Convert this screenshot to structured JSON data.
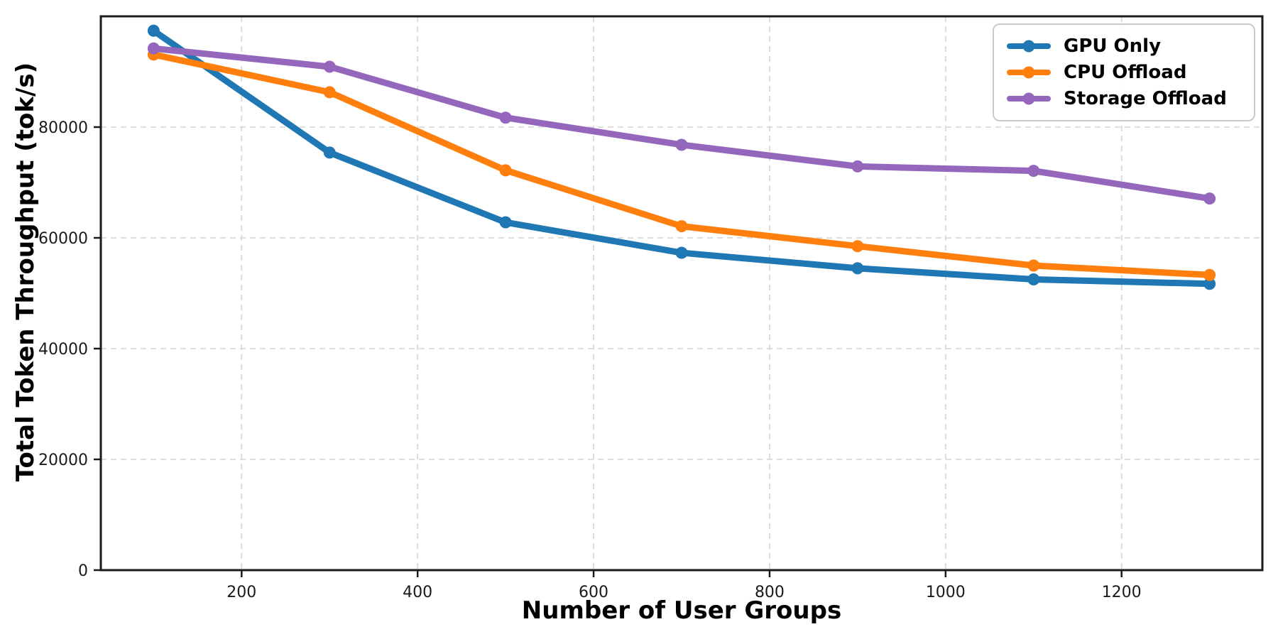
{
  "chart_data": {
    "type": "line",
    "x": [
      100,
      300,
      500,
      700,
      900,
      1100,
      1300
    ],
    "series": [
      {
        "name": "GPU Only",
        "color": "#1f77b4",
        "values": [
          97400,
          75400,
          62800,
          57300,
          54500,
          52500,
          51700
        ]
      },
      {
        "name": "CPU Offload",
        "color": "#ff7f0e",
        "values": [
          93100,
          86300,
          72200,
          62100,
          58500,
          55000,
          53300
        ]
      },
      {
        "name": "Storage Offload",
        "color": "#9467bd",
        "values": [
          94200,
          90900,
          81700,
          76800,
          72900,
          72100,
          67100
        ]
      }
    ],
    "title": "",
    "xlabel": "Number of User Groups",
    "ylabel": "Total Token Throughput (tok/s)",
    "x_ticks": [
      200,
      400,
      600,
      800,
      1000,
      1200
    ],
    "y_ticks": [
      0,
      20000,
      40000,
      60000,
      80000
    ],
    "xlim": [
      40,
      1360
    ],
    "ylim": [
      0,
      100000
    ],
    "grid": true,
    "grid_style": "dashed",
    "legend_position": "upper-right",
    "colors": {
      "grid": "#d9d9d9",
      "axis": "#1a1a1a",
      "tick_text": "#1a1a1a",
      "label_text": "#000000"
    }
  }
}
